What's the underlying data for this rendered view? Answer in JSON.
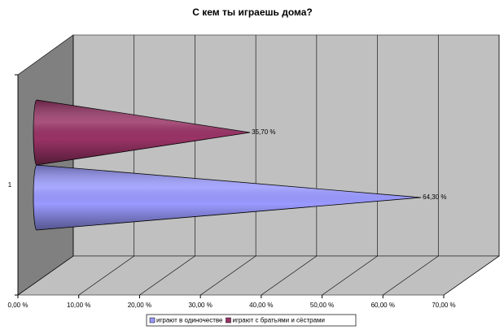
{
  "chart_data": {
    "type": "cone",
    "title": "С кем ты играешь дома?",
    "categories": [
      "1"
    ],
    "series": [
      {
        "name": "играют в одиночестве",
        "color": "#9999ff",
        "values": [
          64.3
        ],
        "value_labels": [
          "64,30 %"
        ]
      },
      {
        "name": "играют с братьями и сёстрами",
        "color": "#993366",
        "values": [
          35.7
        ],
        "value_labels": [
          "35,70 %"
        ]
      }
    ],
    "xlim": [
      0,
      70
    ],
    "xticks": [
      {
        "value": 0,
        "label": "0,00 %"
      },
      {
        "value": 10,
        "label": "10,00 %"
      },
      {
        "value": 20,
        "label": "20,00 %"
      },
      {
        "value": 30,
        "label": "30,00 %"
      },
      {
        "value": 40,
        "label": "40,00 %"
      },
      {
        "value": 50,
        "label": "50,00 %"
      },
      {
        "value": 60,
        "label": "60,00 %"
      },
      {
        "value": 70,
        "label": "70,00 %"
      }
    ],
    "grid": true,
    "legend": "bottom"
  }
}
